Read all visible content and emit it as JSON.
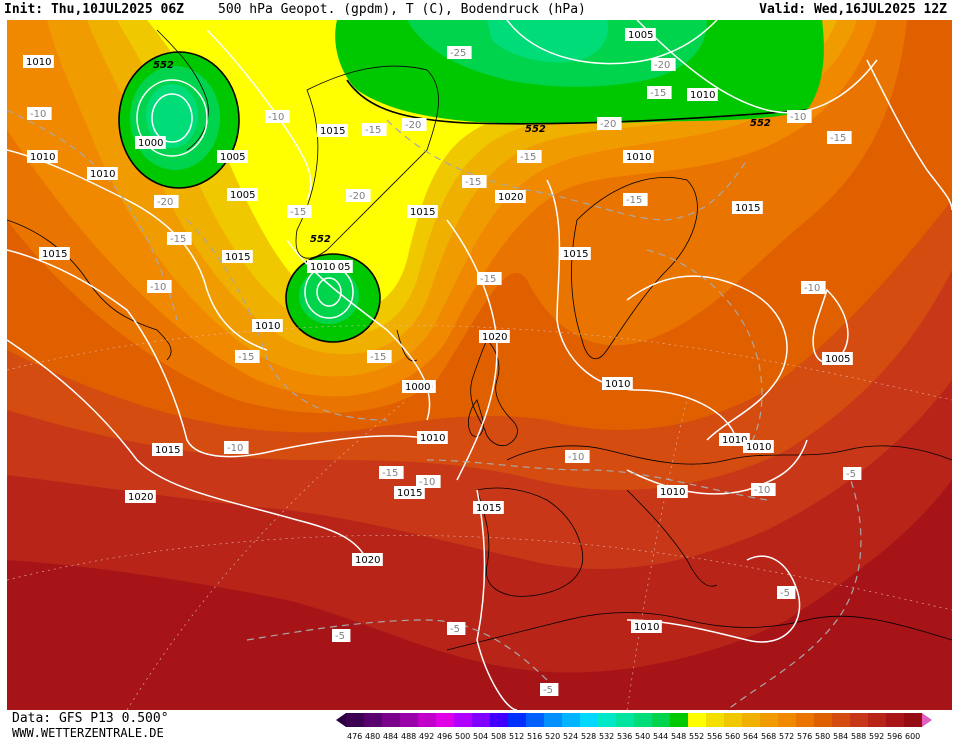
{
  "header": {
    "init": "Init: Thu,10JUL2025 06Z",
    "title": "500 hPa Geopot. (gpdm), T (C), Bodendruck (hPa)",
    "valid": "Valid: Wed,16JUL2025 12Z"
  },
  "footer": {
    "data_source": "Data: GFS P13 0.500°",
    "website": "WWW.WETTERZENTRALE.DE"
  },
  "legend": {
    "values": [
      "476",
      "480",
      "484",
      "488",
      "492",
      "496",
      "500",
      "504",
      "508",
      "512",
      "516",
      "520",
      "524",
      "528",
      "532",
      "536",
      "540",
      "544",
      "548",
      "552",
      "556",
      "560",
      "564",
      "568",
      "572",
      "576",
      "580",
      "584",
      "588",
      "592",
      "596",
      "600"
    ],
    "colors": [
      "#3c0050",
      "#5a006e",
      "#7a008a",
      "#9a00aa",
      "#c000c8",
      "#e000e8",
      "#b000ff",
      "#8000ff",
      "#4000ff",
      "#0030ff",
      "#0060ff",
      "#0090ff",
      "#00b4ff",
      "#00d8ff",
      "#00e8c8",
      "#00e4a0",
      "#00dc78",
      "#00d44c",
      "#00c800",
      "#ffff00",
      "#f4e000",
      "#f0c800",
      "#f0b000",
      "#f09c00",
      "#f08800",
      "#ea7400",
      "#e06000",
      "#d44c10",
      "#c83818",
      "#b82418",
      "#a81418",
      "#960a14"
    ]
  },
  "map": {
    "isobar_labels": [
      "1010",
      "1015",
      "1000",
      "1005",
      "1010",
      "1010",
      "1005",
      "1010",
      "1000",
      "1005",
      "1015",
      "1005",
      "1010",
      "1015",
      "1020",
      "1015",
      "1015",
      "1020",
      "1015",
      "1010",
      "1000",
      "1010",
      "1015",
      "1015",
      "1020",
      "1020",
      "1010",
      "1010",
      "1010",
      "1010",
      "1005",
      "1010",
      "1010",
      "1015"
    ],
    "temp_labels": [
      "-25",
      "-20",
      "-20",
      "-15",
      "-20",
      "-15",
      "-15",
      "-20",
      "-15",
      "-15",
      "-10",
      "-10",
      "-15",
      "-15",
      "-15",
      "-10",
      "-15",
      "-15",
      "-10",
      "-10",
      "-10",
      "-10",
      "-5",
      "-5",
      "-5",
      "-5",
      "-5",
      "-10",
      "-15",
      "-20",
      "-15",
      "-10"
    ],
    "height_labels": [
      "552",
      "552",
      "552",
      "552"
    ]
  }
}
